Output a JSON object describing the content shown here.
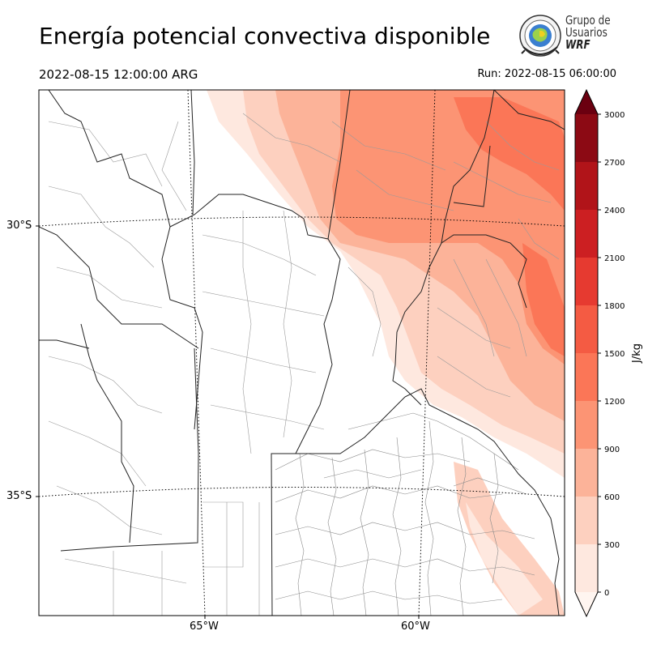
{
  "title": "Energía potencial convectiva disponible",
  "valid_time": "2022-08-15 12:00:00 ARG",
  "run_time": "Run: 2022-08-15 06:00:00",
  "logo": {
    "line1": "Grupo de",
    "line2": "Usuarios",
    "line3": "WRF"
  },
  "map": {
    "lat_labels": [
      "30°S",
      "35°S"
    ],
    "lon_labels": [
      "65°W",
      "60°W"
    ]
  },
  "colorbar": {
    "label": "J/kg",
    "ticks": [
      "0",
      "300",
      "600",
      "900",
      "1200",
      "1500",
      "1800",
      "2100",
      "2400",
      "2700",
      "3000"
    ],
    "colors": [
      "#fee8df",
      "#fdd0bf",
      "#fcb399",
      "#fc9474",
      "#fb7657",
      "#f45b43",
      "#e63a30",
      "#cc1f22",
      "#b11419",
      "#8c0a14"
    ],
    "over_color": "#6b0010",
    "under_color": "#fff5f0"
  }
}
